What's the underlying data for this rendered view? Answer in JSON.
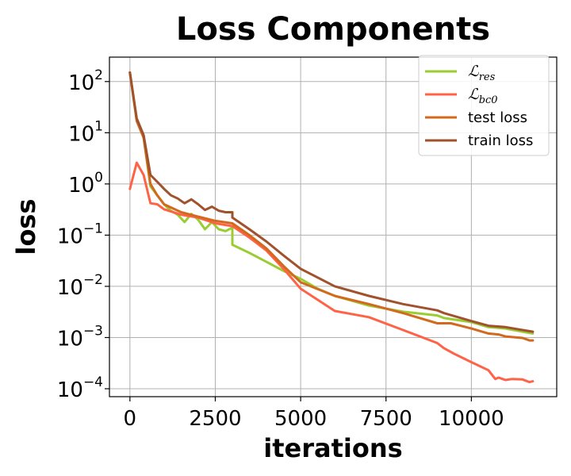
{
  "chart_data": {
    "type": "line",
    "title": "Loss Components",
    "xlabel": "iterations",
    "ylabel": "loss",
    "yscale": "log",
    "xlim": [
      -600,
      12500
    ],
    "ylim": [
      7e-05,
      300
    ],
    "grid": true,
    "legend_position": "top-right",
    "x_ticks": [
      {
        "value": 0,
        "label": "0"
      },
      {
        "value": 2500,
        "label": "2500"
      },
      {
        "value": 5000,
        "label": "5000"
      },
      {
        "value": 7500,
        "label": "7500"
      },
      {
        "value": 10000,
        "label": "10000"
      }
    ],
    "y_ticks": [
      {
        "value": 100,
        "base": "10",
        "exp": "2"
      },
      {
        "value": 10,
        "base": "10",
        "exp": "1"
      },
      {
        "value": 1,
        "base": "10",
        "exp": "0"
      },
      {
        "value": 0.1,
        "base": "10",
        "exp": "−1"
      },
      {
        "value": 0.01,
        "base": "10",
        "exp": "−2"
      },
      {
        "value": 0.001,
        "base": "10",
        "exp": "−3"
      },
      {
        "value": 0.0001,
        "base": "10",
        "exp": "−4"
      }
    ],
    "series": [
      {
        "name_main": "ℒ",
        "name_sub": "res",
        "color": "#9acd32",
        "x": [
          0,
          200,
          400,
          600,
          800,
          1000,
          1200,
          1400,
          1600,
          1800,
          2000,
          2200,
          2400,
          2600,
          2800,
          3000,
          3001,
          3500,
          4000,
          4500,
          5000,
          5500,
          6000,
          7000,
          8000,
          9000,
          9200,
          10000,
          10500,
          11000,
          11500,
          11800
        ],
        "y": [
          150,
          18,
          8,
          0.9,
          0.6,
          0.4,
          0.3,
          0.25,
          0.18,
          0.26,
          0.2,
          0.13,
          0.18,
          0.13,
          0.12,
          0.14,
          0.065,
          0.045,
          0.03,
          0.02,
          0.014,
          0.009,
          0.0065,
          0.0042,
          0.0032,
          0.0027,
          0.0024,
          0.002,
          0.0016,
          0.0015,
          0.0013,
          0.0012
        ]
      },
      {
        "name_main": "ℒ",
        "name_sub": "bc0",
        "color": "#ff6347",
        "x": [
          0,
          200,
          400,
          600,
          800,
          1000,
          1500,
          2000,
          2500,
          3000,
          3500,
          4000,
          4500,
          5000,
          6000,
          7000,
          8000,
          9000,
          9200,
          9500,
          10000,
          10500,
          10700,
          10800,
          11000,
          11200,
          11500,
          11700,
          11800
        ],
        "y": [
          0.8,
          2.6,
          1.5,
          0.42,
          0.4,
          0.32,
          0.25,
          0.22,
          0.17,
          0.15,
          0.09,
          0.05,
          0.022,
          0.009,
          0.0033,
          0.0025,
          0.0014,
          0.00078,
          0.00062,
          0.00048,
          0.00033,
          0.00023,
          0.000155,
          0.000165,
          0.000148,
          0.000155,
          0.000152,
          0.000135,
          0.00014
        ]
      },
      {
        "name_main": "test loss",
        "name_sub": "",
        "color": "#d2691e",
        "x": [
          0,
          200,
          400,
          600,
          800,
          1000,
          1500,
          2000,
          2500,
          3000,
          3500,
          4000,
          4500,
          5000,
          6000,
          7000,
          8000,
          9000,
          9400,
          10000,
          10500,
          10800,
          11000,
          11500,
          11700,
          11800
        ],
        "y": [
          150,
          17,
          8,
          1.0,
          0.6,
          0.4,
          0.28,
          0.23,
          0.19,
          0.17,
          0.1,
          0.055,
          0.025,
          0.012,
          0.0065,
          0.0045,
          0.003,
          0.0019,
          0.0019,
          0.0015,
          0.0012,
          0.00115,
          0.00105,
          0.00098,
          0.00088,
          0.00088
        ]
      },
      {
        "name_main": "train loss",
        "name_sub": "",
        "color": "#a0522d",
        "x": [
          0,
          200,
          400,
          600,
          800,
          1000,
          1200,
          1400,
          1600,
          1800,
          2000,
          2200,
          2400,
          2600,
          2800,
          3000,
          3001,
          3500,
          4000,
          4500,
          5000,
          6000,
          7000,
          8000,
          9000,
          9200,
          10000,
          10500,
          11000,
          11500,
          11800
        ],
        "y": [
          150,
          19,
          9,
          1.5,
          1.1,
          0.8,
          0.6,
          0.52,
          0.42,
          0.5,
          0.4,
          0.31,
          0.36,
          0.3,
          0.28,
          0.28,
          0.22,
          0.13,
          0.075,
          0.04,
          0.022,
          0.01,
          0.0065,
          0.0045,
          0.0034,
          0.003,
          0.0021,
          0.0017,
          0.0016,
          0.0014,
          0.0013
        ]
      }
    ]
  }
}
